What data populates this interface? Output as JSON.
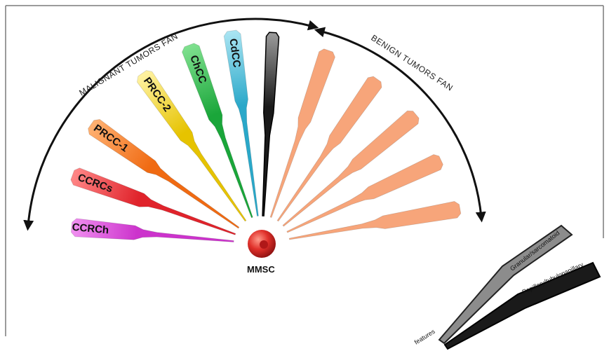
{
  "arc_labels": {
    "malignant": "MALIGNANT TUMORS FAN",
    "benign": "BENIGN TUMORS FAN"
  },
  "center_label": "MMSC",
  "malignant_blades": [
    {
      "label": "CCRCh",
      "color": "#cc33cc",
      "light": "#f08ef0"
    },
    {
      "label": "CCRCs",
      "color": "#e0232b",
      "light": "#ff8585"
    },
    {
      "label": "PRCC-1",
      "color": "#f06a12",
      "light": "#ffb070"
    },
    {
      "label": "PRCC-2",
      "color": "#e6c300",
      "light": "#fff2a0"
    },
    {
      "label": "ChCC",
      "color": "#1aa63a",
      "light": "#7ee08e"
    },
    {
      "label": "CdCC",
      "color": "#2aa8c9",
      "light": "#a8e4f2"
    }
  ],
  "middle_blade": {
    "color": "#1a1a1a",
    "light": "#9a9a9a"
  },
  "benign_blade_color": "#f7a57a",
  "benign_blade_count": 5,
  "legend": {
    "top_label": "Granular/sarcomatoid",
    "bottom_label": "Papillary/tubulopapillary",
    "root_label": "features",
    "top_color": "#8c8c8c",
    "bottom_color": "#1a1a1a"
  },
  "colors": {
    "frame": "#7a7a7a",
    "arc": "#111111",
    "sphere": "#e0302a"
  }
}
